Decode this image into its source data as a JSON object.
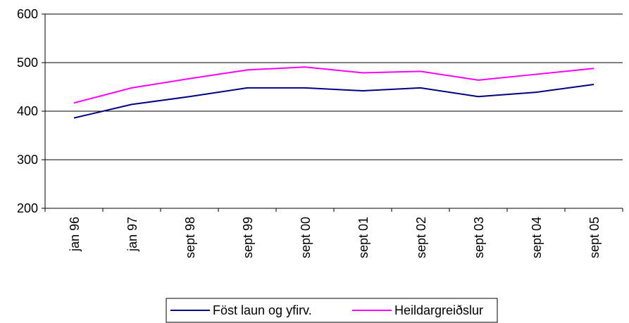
{
  "chart_data": {
    "type": "line",
    "categories": [
      "jan 96",
      "jan 97",
      "sept 98",
      "sept 99",
      "sept 00",
      "sept 01",
      "sept 02",
      "sept 03",
      "sept 04",
      "sept 05"
    ],
    "ylim": [
      200,
      600
    ],
    "yticks": [
      200,
      300,
      400,
      500,
      600
    ],
    "grid": "horizontal",
    "legend_position": "bottom",
    "series": [
      {
        "name": "Föst laun og yfirv.",
        "color": "#000080",
        "values": [
          386,
          414,
          430,
          448,
          448,
          442,
          448,
          430,
          439,
          455
        ]
      },
      {
        "name": "Heildargreiðslur",
        "color": "#FF00FF",
        "values": [
          417,
          448,
          467,
          485,
          491,
          479,
          482,
          464,
          476,
          488
        ]
      }
    ]
  }
}
